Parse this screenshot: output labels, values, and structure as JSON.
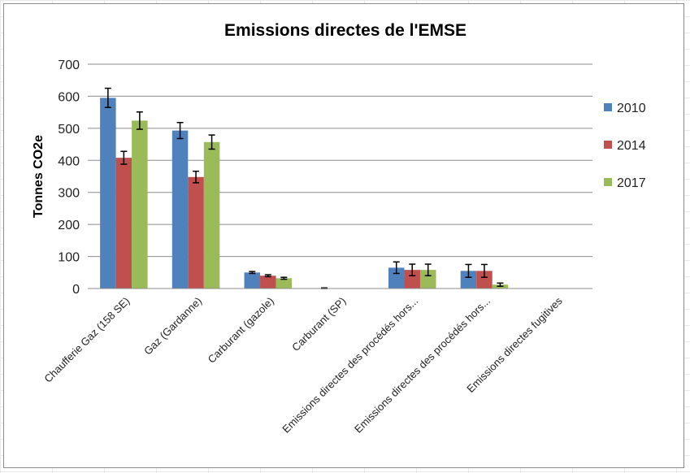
{
  "chart_data": {
    "type": "bar",
    "title": "Emissions directes de l'EMSE",
    "xlabel": "",
    "ylabel": "Tonnes CO2e",
    "ylim": [
      0,
      700
    ],
    "yticks": [
      0,
      100,
      200,
      300,
      400,
      500,
      600,
      700
    ],
    "grid": true,
    "legend_position": "right",
    "categories": [
      "Chaufferie Gaz (158 SE)",
      "Gaz (Gardanne)",
      "Carburant (gazole)",
      "Carburant (SP)",
      "Emissions directes des procédés hors...",
      "Emissions directes des procédés hors...",
      "Emissions directes fugitives"
    ],
    "series": [
      {
        "name": "2010",
        "color": "#4f81bd",
        "values": [
          595,
          493,
          50,
          1,
          65,
          55,
          0
        ],
        "errors": [
          30,
          25,
          3,
          1,
          18,
          20,
          0
        ]
      },
      {
        "name": "2014",
        "color": "#c0504d",
        "values": [
          408,
          348,
          40,
          0,
          58,
          55,
          0
        ],
        "errors": [
          20,
          18,
          3,
          0,
          18,
          20,
          0
        ]
      },
      {
        "name": "2017",
        "color": "#9bbb59",
        "values": [
          524,
          457,
          32,
          0,
          58,
          12,
          0
        ],
        "errors": [
          27,
          22,
          3,
          0,
          18,
          5,
          0
        ]
      }
    ]
  }
}
